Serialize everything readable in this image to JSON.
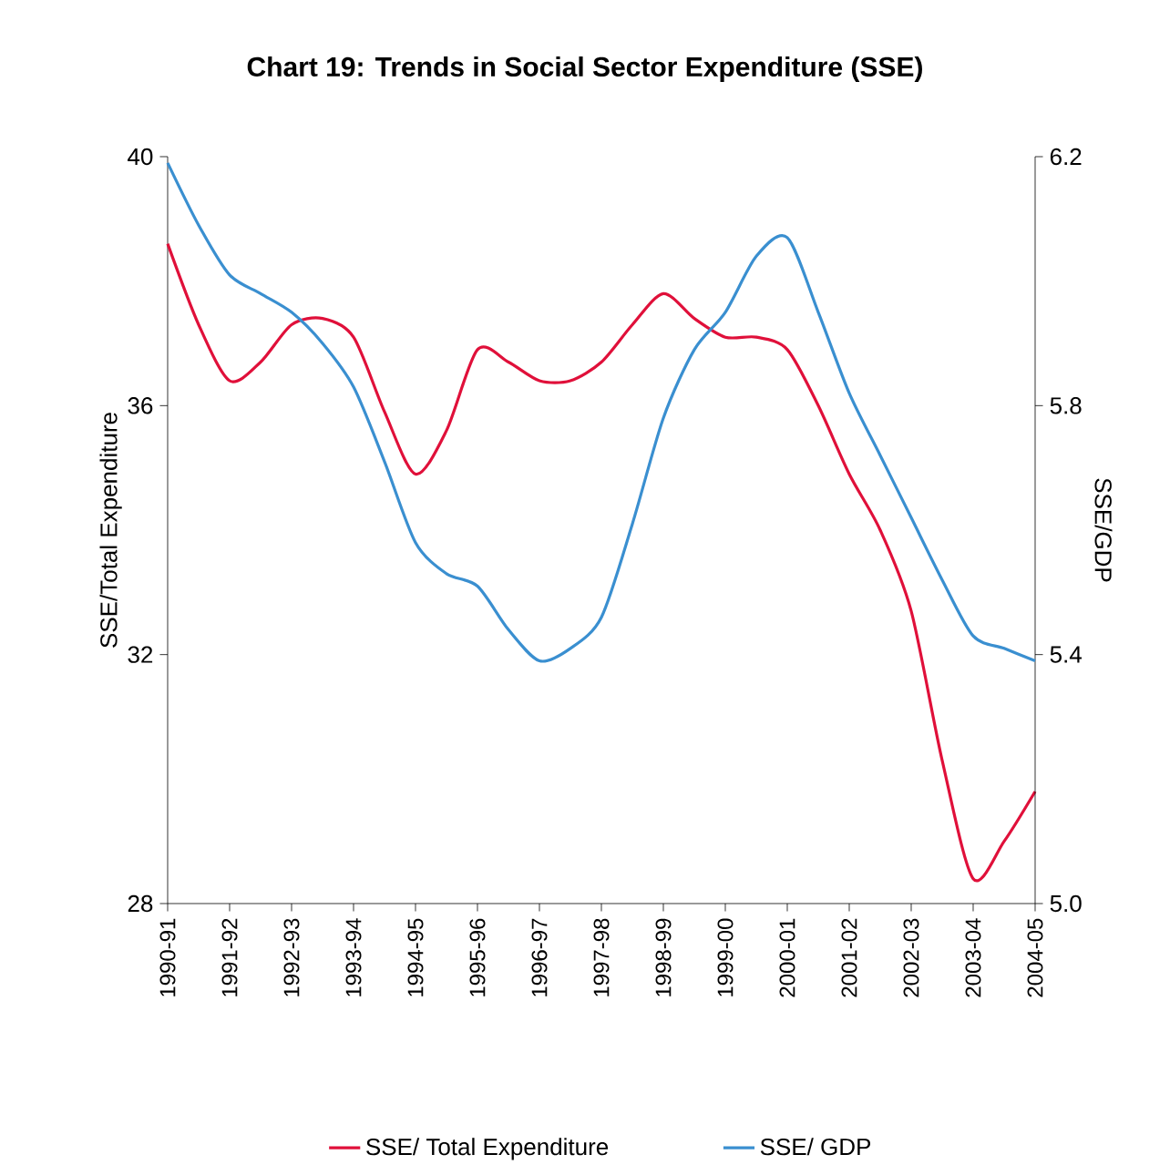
{
  "chart_data": {
    "type": "line",
    "title": "Chart 19: Trends in Social Sector Expenditure (SSE)",
    "ylabel": "SSE/Total Expenditure",
    "y2label": "SSE/GDP",
    "categories": [
      "1990-91",
      null,
      "1991-92",
      null,
      "1992-93",
      null,
      "1993-94",
      null,
      "1994-95",
      null,
      "1995-96",
      null,
      "1996-97",
      null,
      "1997-98",
      null,
      "1998-99",
      null,
      "1999-00",
      null,
      "2000-01",
      null,
      "2001-02",
      null,
      "2002-03",
      null,
      "2003-04",
      null,
      "2004-05"
    ],
    "series": [
      {
        "name": "SSE/ Total Expenditure",
        "color": "#e0103a",
        "values": [
          38.6,
          37.3,
          36.4,
          36.7,
          37.3,
          37.4,
          37.1,
          35.9,
          34.9,
          35.6,
          36.9,
          36.7,
          36.4,
          36.4,
          36.7,
          37.3,
          37.8,
          37.4,
          37.1,
          37.1,
          36.9,
          36.0,
          34.9,
          34.0,
          32.7,
          30.3,
          28.4,
          29.0,
          29.8
        ]
      },
      {
        "name": "SSE/ GDP",
        "color": "#3a8fd0",
        "axis": "y2",
        "values": [
          6.19,
          6.09,
          6.01,
          5.98,
          5.95,
          5.9,
          5.83,
          5.71,
          5.58,
          5.53,
          5.51,
          5.44,
          5.39,
          5.41,
          5.46,
          5.61,
          5.78,
          5.89,
          5.95,
          6.04,
          6.07,
          5.95,
          5.82,
          5.72,
          5.62,
          5.52,
          5.43,
          5.41,
          5.39
        ]
      }
    ],
    "ylim": [
      28,
      40
    ],
    "yticks": [
      28,
      32,
      36,
      40
    ],
    "y2lim": [
      5.0,
      6.2
    ],
    "y2ticks": [
      {
        "value": 5.0,
        "label": "5.0"
      },
      {
        "value": 5.4,
        "label": "5.4"
      },
      {
        "value": 5.8,
        "label": "5.8"
      },
      {
        "value": 6.2,
        "label": "6.2"
      }
    ],
    "grid": false,
    "legend": "bottom"
  }
}
